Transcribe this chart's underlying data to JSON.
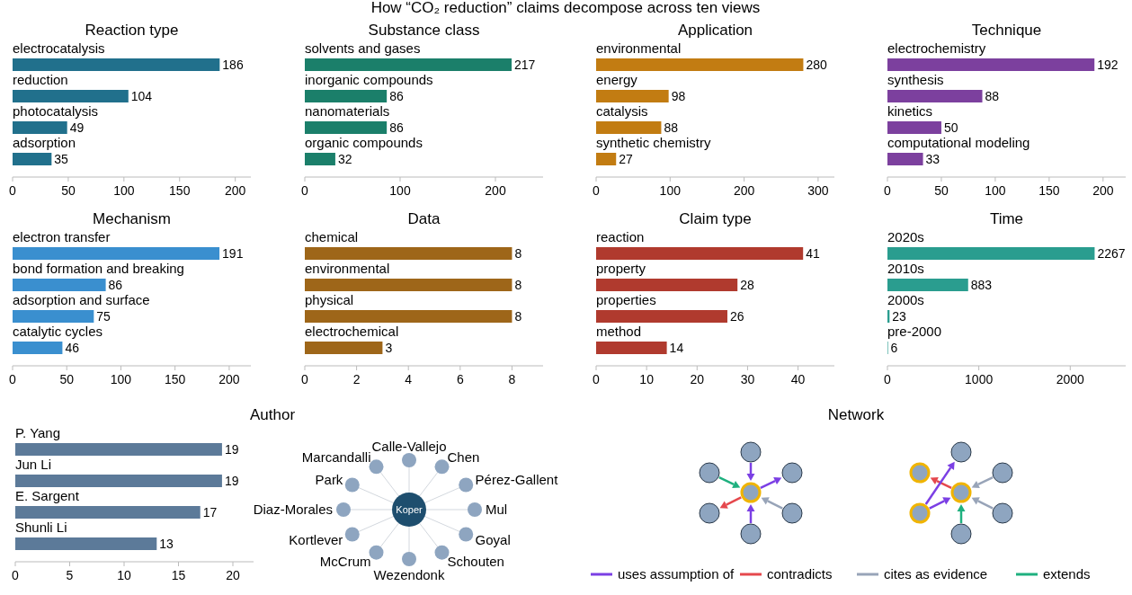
{
  "chart_data": [
    {
      "type": "other",
      "title": "How “CO₂ reduction” claims decompose across ten views"
    },
    {
      "type": "bar",
      "orientation": "horizontal",
      "title": "Reaction type",
      "categories": [
        "electrocatalysis",
        "reduction",
        "photocatalysis",
        "adsorption"
      ],
      "values": [
        186,
        104,
        49,
        35
      ],
      "color": "#21708c",
      "xlim": [
        0,
        214
      ],
      "xticks": [
        0,
        50,
        100,
        150,
        200
      ],
      "data_labels": true
    },
    {
      "type": "bar",
      "orientation": "horizontal",
      "title": "Substance class",
      "categories": [
        "solvents and gases",
        "inorganic compounds",
        "nanomaterials",
        "organic compounds"
      ],
      "values": [
        217,
        86,
        86,
        32
      ],
      "color": "#1b7f6a",
      "xlim": [
        0,
        250
      ],
      "xticks": [
        0,
        100,
        200
      ],
      "data_labels": true
    },
    {
      "type": "bar",
      "orientation": "horizontal",
      "title": "Application",
      "categories": [
        "environmental",
        "energy",
        "catalysis",
        "synthetic chemistry"
      ],
      "values": [
        280,
        98,
        88,
        27
      ],
      "color": "#c27c12",
      "xlim": [
        0,
        322
      ],
      "xticks": [
        0,
        100,
        200,
        300
      ],
      "data_labels": true
    },
    {
      "type": "bar",
      "orientation": "horizontal",
      "title": "Technique",
      "categories": [
        "electrochemistry",
        "synthesis",
        "kinetics",
        "computational modeling"
      ],
      "values": [
        192,
        88,
        50,
        33
      ],
      "color": "#7c409e",
      "xlim": [
        0,
        221
      ],
      "xticks": [
        0,
        50,
        100,
        150,
        200
      ],
      "data_labels": true
    },
    {
      "type": "bar",
      "orientation": "horizontal",
      "title": "Mechanism",
      "categories": [
        "electron transfer",
        "bond formation and breaking",
        "adsorption and surface",
        "catalytic cycles"
      ],
      "values": [
        191,
        86,
        75,
        46
      ],
      "color": "#3a8fcf",
      "xlim": [
        0,
        220
      ],
      "xticks": [
        0,
        50,
        100,
        150,
        200
      ],
      "data_labels": true
    },
    {
      "type": "bar",
      "orientation": "horizontal",
      "title": "Data",
      "categories": [
        "chemical",
        "environmental",
        "physical",
        "electrochemical"
      ],
      "values": [
        8,
        8,
        8,
        3
      ],
      "color": "#9e6619",
      "xlim": [
        0,
        9.2
      ],
      "xticks": [
        0,
        2,
        4,
        6,
        8
      ],
      "data_labels": true
    },
    {
      "type": "bar",
      "orientation": "horizontal",
      "title": "Claim type",
      "categories": [
        "reaction",
        "property",
        "properties",
        "method"
      ],
      "values": [
        41,
        28,
        26,
        14
      ],
      "color": "#b03a2e",
      "xlim": [
        0,
        47.2
      ],
      "xticks": [
        0,
        10,
        20,
        30,
        40
      ],
      "data_labels": true
    },
    {
      "type": "bar",
      "orientation": "horizontal",
      "title": "Time",
      "categories": [
        "2020s",
        "2010s",
        "2000s",
        "pre-2000"
      ],
      "values": [
        2267,
        883,
        23,
        6
      ],
      "color": "#2a9d8f",
      "xlim": [
        0,
        2607
      ],
      "xticks": [
        0,
        1000,
        2000
      ],
      "data_labels": true
    },
    {
      "type": "bar",
      "orientation": "horizontal",
      "title": "Author",
      "categories": [
        "P. Yang",
        "Jun Li",
        "E. Sargent",
        "Shunli Li"
      ],
      "values": [
        19,
        19,
        17,
        13
      ],
      "color": "#5c7a99",
      "xlim": [
        0,
        21.9
      ],
      "xticks": [
        0,
        5,
        10,
        15,
        20
      ],
      "data_labels": true
    },
    {
      "type": "other",
      "annotations": [
        "Koper",
        "Calle-Vallejo",
        "Chen",
        "Pérez-Gallent",
        "Mul",
        "Goyal",
        "Schouten",
        "Wezendonk",
        "McCrum",
        "Kortlever",
        "Diaz-Morales",
        "Park",
        "Marcandalli"
      ]
    },
    {
      "type": "other",
      "title": "Network",
      "annotations": [
        "uses assumption of",
        "contradicts",
        "cites as evidence",
        "extends"
      ]
    }
  ]
}
